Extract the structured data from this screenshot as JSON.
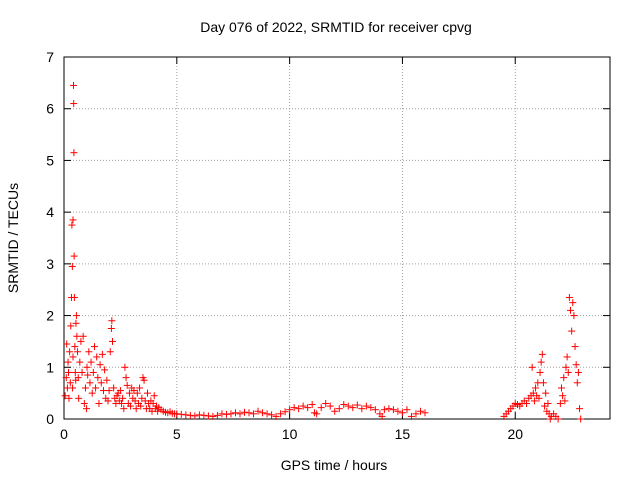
{
  "chart_data": {
    "type": "scatter",
    "title": "Day 076 of 2022, SRMTID for receiver cpvg",
    "xlabel": "GPS time / hours",
    "ylabel": "SRMTID / TECUs",
    "xlim": [
      0,
      24.2
    ],
    "ylim": [
      0,
      7
    ],
    "xticks": [
      "0",
      "5",
      "10",
      "15",
      "20"
    ],
    "yticks": [
      "0",
      "1",
      "2",
      "3",
      "4",
      "5",
      "6",
      "7"
    ],
    "grid": true,
    "marker": "+",
    "color": "#ff0000",
    "series": [
      {
        "name": "SRMTID",
        "points": [
          [
            0.05,
            0.45
          ],
          [
            0.1,
            0.8
          ],
          [
            0.12,
            1.45
          ],
          [
            0.15,
            0.6
          ],
          [
            0.18,
            1.1
          ],
          [
            0.2,
            0.9
          ],
          [
            0.22,
            0.4
          ],
          [
            0.25,
            1.3
          ],
          [
            0.28,
            0.7
          ],
          [
            0.3,
            1.8
          ],
          [
            0.33,
            2.35
          ],
          [
            0.35,
            3.75
          ],
          [
            0.37,
            2.95
          ],
          [
            0.38,
            0.6
          ],
          [
            0.4,
            1.2
          ],
          [
            0.4,
            3.85
          ],
          [
            0.42,
            6.45
          ],
          [
            0.43,
            6.1
          ],
          [
            0.44,
            5.15
          ],
          [
            0.45,
            3.15
          ],
          [
            0.46,
            2.35
          ],
          [
            0.48,
            1.4
          ],
          [
            0.5,
            0.9
          ],
          [
            0.52,
            0.75
          ],
          [
            0.53,
            1.85
          ],
          [
            0.55,
            2.0
          ],
          [
            0.57,
            1.6
          ],
          [
            0.6,
            1.3
          ],
          [
            0.63,
            0.8
          ],
          [
            0.65,
            0.4
          ],
          [
            0.7,
            1.1
          ],
          [
            0.75,
            1.5
          ],
          [
            0.8,
            0.9
          ],
          [
            0.85,
            1.6
          ],
          [
            0.9,
            0.3
          ],
          [
            0.95,
            0.6
          ],
          [
            1.0,
            0.2
          ],
          [
            1.02,
            1.0
          ],
          [
            1.05,
            0.85
          ],
          [
            1.1,
            1.3
          ],
          [
            1.15,
            0.7
          ],
          [
            1.2,
            1.1
          ],
          [
            1.25,
            0.5
          ],
          [
            1.3,
            0.9
          ],
          [
            1.35,
            1.4
          ],
          [
            1.4,
            0.6
          ],
          [
            1.45,
            1.2
          ],
          [
            1.5,
            0.8
          ],
          [
            1.55,
            0.3
          ],
          [
            1.6,
            1.05
          ],
          [
            1.65,
            0.7
          ],
          [
            1.7,
            1.25
          ],
          [
            1.75,
            0.55
          ],
          [
            1.8,
            0.95
          ],
          [
            1.85,
            0.4
          ],
          [
            1.9,
            0.75
          ],
          [
            1.95,
            0.35
          ],
          [
            2.0,
            0.55
          ],
          [
            2.05,
            1.3
          ],
          [
            2.1,
            1.75
          ],
          [
            2.12,
            1.9
          ],
          [
            2.15,
            1.5
          ],
          [
            2.2,
            0.6
          ],
          [
            2.25,
            0.4
          ],
          [
            2.3,
            0.3
          ],
          [
            2.35,
            0.45
          ],
          [
            2.4,
            0.5
          ],
          [
            2.45,
            0.35
          ],
          [
            2.5,
            0.55
          ],
          [
            2.55,
            0.3
          ],
          [
            2.6,
            0.4
          ],
          [
            2.65,
            0.2
          ],
          [
            2.7,
            1.0
          ],
          [
            2.75,
            0.8
          ],
          [
            2.8,
            0.65
          ],
          [
            2.85,
            0.3
          ],
          [
            2.9,
            0.5
          ],
          [
            2.95,
            0.25
          ],
          [
            3.0,
            0.6
          ],
          [
            3.05,
            0.4
          ],
          [
            3.1,
            0.55
          ],
          [
            3.15,
            0.35
          ],
          [
            3.2,
            0.2
          ],
          [
            3.25,
            0.5
          ],
          [
            3.3,
            0.3
          ],
          [
            3.35,
            0.6
          ],
          [
            3.4,
            0.25
          ],
          [
            3.45,
            0.4
          ],
          [
            3.5,
            0.8
          ],
          [
            3.55,
            0.75
          ],
          [
            3.6,
            0.35
          ],
          [
            3.65,
            0.2
          ],
          [
            3.7,
            0.5
          ],
          [
            3.75,
            0.3
          ],
          [
            3.8,
            0.2
          ],
          [
            3.85,
            0.35
          ],
          [
            3.9,
            0.15
          ],
          [
            3.95,
            0.3
          ],
          [
            4.0,
            0.45
          ],
          [
            4.05,
            0.2
          ],
          [
            4.1,
            0.25
          ],
          [
            4.15,
            0.15
          ],
          [
            4.2,
            0.22
          ],
          [
            4.3,
            0.18
          ],
          [
            4.4,
            0.15
          ],
          [
            4.5,
            0.13
          ],
          [
            4.6,
            0.12
          ],
          [
            4.7,
            0.14
          ],
          [
            4.8,
            0.11
          ],
          [
            4.9,
            0.1
          ],
          [
            5.0,
            0.1
          ],
          [
            5.2,
            0.09
          ],
          [
            5.4,
            0.08
          ],
          [
            5.6,
            0.07
          ],
          [
            5.8,
            0.06
          ],
          [
            6.0,
            0.08
          ],
          [
            6.2,
            0.07
          ],
          [
            6.4,
            0.06
          ],
          [
            6.6,
            0.05
          ],
          [
            6.8,
            0.07
          ],
          [
            7.0,
            0.1
          ],
          [
            7.2,
            0.09
          ],
          [
            7.4,
            0.1
          ],
          [
            7.6,
            0.12
          ],
          [
            7.8,
            0.1
          ],
          [
            8.0,
            0.13
          ],
          [
            8.2,
            0.12
          ],
          [
            8.4,
            0.1
          ],
          [
            8.6,
            0.15
          ],
          [
            8.8,
            0.12
          ],
          [
            9.0,
            0.1
          ],
          [
            9.2,
            0.08
          ],
          [
            9.4,
            0.05
          ],
          [
            9.6,
            0.1
          ],
          [
            9.8,
            0.14
          ],
          [
            10.0,
            0.18
          ],
          [
            10.2,
            0.22
          ],
          [
            10.4,
            0.2
          ],
          [
            10.6,
            0.25
          ],
          [
            10.8,
            0.22
          ],
          [
            11.0,
            0.28
          ],
          [
            11.1,
            0.12
          ],
          [
            11.2,
            0.1
          ],
          [
            11.4,
            0.22
          ],
          [
            11.6,
            0.3
          ],
          [
            11.8,
            0.25
          ],
          [
            12.0,
            0.15
          ],
          [
            12.2,
            0.2
          ],
          [
            12.4,
            0.28
          ],
          [
            12.6,
            0.25
          ],
          [
            12.8,
            0.22
          ],
          [
            13.0,
            0.27
          ],
          [
            13.2,
            0.2
          ],
          [
            13.4,
            0.25
          ],
          [
            13.6,
            0.22
          ],
          [
            13.8,
            0.18
          ],
          [
            14.0,
            0.1
          ],
          [
            14.1,
            0.05
          ],
          [
            14.2,
            0.18
          ],
          [
            14.4,
            0.2
          ],
          [
            14.6,
            0.18
          ],
          [
            14.8,
            0.15
          ],
          [
            15.0,
            0.12
          ],
          [
            15.2,
            0.18
          ],
          [
            15.4,
            0.05
          ],
          [
            15.6,
            0.1
          ],
          [
            15.8,
            0.15
          ],
          [
            16.0,
            0.12
          ],
          [
            19.5,
            0.05
          ],
          [
            19.6,
            0.1
          ],
          [
            19.7,
            0.15
          ],
          [
            19.8,
            0.2
          ],
          [
            19.9,
            0.25
          ],
          [
            20.0,
            0.3
          ],
          [
            20.1,
            0.28
          ],
          [
            20.2,
            0.25
          ],
          [
            20.3,
            0.3
          ],
          [
            20.4,
            0.35
          ],
          [
            20.5,
            0.3
          ],
          [
            20.6,
            0.4
          ],
          [
            20.7,
            0.45
          ],
          [
            20.75,
            1.0
          ],
          [
            20.8,
            0.5
          ],
          [
            20.85,
            0.35
          ],
          [
            20.9,
            0.6
          ],
          [
            20.95,
            0.45
          ],
          [
            21.0,
            0.7
          ],
          [
            21.05,
            0.4
          ],
          [
            21.1,
            0.9
          ],
          [
            21.15,
            1.1
          ],
          [
            21.2,
            1.25
          ],
          [
            21.25,
            0.7
          ],
          [
            21.3,
            0.25
          ],
          [
            21.35,
            0.5
          ],
          [
            21.4,
            0.15
          ],
          [
            21.45,
            0.3
          ],
          [
            21.5,
            0.1
          ],
          [
            21.55,
            0.0
          ],
          [
            21.6,
            0.05
          ],
          [
            21.7,
            0.1
          ],
          [
            21.8,
            0.05
          ],
          [
            21.9,
            0.0
          ],
          [
            22.0,
            0.3
          ],
          [
            22.05,
            0.6
          ],
          [
            22.1,
            0.45
          ],
          [
            22.15,
            0.8
          ],
          [
            22.2,
            0.35
          ],
          [
            22.25,
            1.0
          ],
          [
            22.3,
            1.2
          ],
          [
            22.35,
            0.9
          ],
          [
            22.4,
            2.35
          ],
          [
            22.45,
            2.1
          ],
          [
            22.5,
            1.7
          ],
          [
            22.55,
            2.25
          ],
          [
            22.6,
            2.0
          ],
          [
            22.65,
            1.4
          ],
          [
            22.7,
            1.05
          ],
          [
            22.75,
            0.7
          ],
          [
            22.8,
            0.9
          ],
          [
            22.85,
            0.2
          ],
          [
            22.9,
            0.0
          ]
        ]
      }
    ]
  }
}
